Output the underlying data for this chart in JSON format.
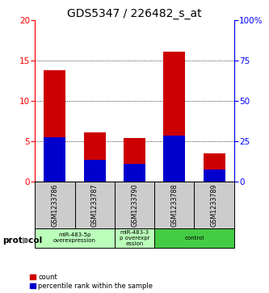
{
  "title": "GDS5347 / 226482_s_at",
  "samples": [
    "GSM1233786",
    "GSM1233787",
    "GSM1233790",
    "GSM1233788",
    "GSM1233789"
  ],
  "count_values": [
    13.8,
    6.1,
    5.4,
    16.1,
    3.5
  ],
  "percentile_values": [
    27.5,
    13.5,
    11.0,
    28.5,
    7.5
  ],
  "bar_color": "#cc0000",
  "percentile_color": "#0000cc",
  "left_ylim": [
    0,
    20
  ],
  "right_ylim": [
    0,
    100
  ],
  "left_yticks": [
    0,
    5,
    10,
    15,
    20
  ],
  "right_yticks": [
    0,
    25,
    50,
    75,
    100
  ],
  "right_yticklabels": [
    "0",
    "25",
    "50",
    "75",
    "100%"
  ],
  "grid_values": [
    5,
    10,
    15
  ],
  "groups": [
    {
      "label": "miR-483-5p\noverexpression",
      "indices": [
        0,
        1
      ],
      "color": "#bbffbb"
    },
    {
      "label": "miR-483-3\np overexpr\nession",
      "indices": [
        2
      ],
      "color": "#bbffbb"
    },
    {
      "label": "control",
      "indices": [
        3,
        4
      ],
      "color": "#44cc44"
    }
  ],
  "protocol_label": "protocol",
  "legend_count_label": "count",
  "legend_percentile_label": "percentile rank within the sample",
  "bar_width": 0.55,
  "background_color": "#ffffff",
  "sample_box_color": "#cccccc",
  "title_fontsize": 10,
  "tick_fontsize": 7.5
}
